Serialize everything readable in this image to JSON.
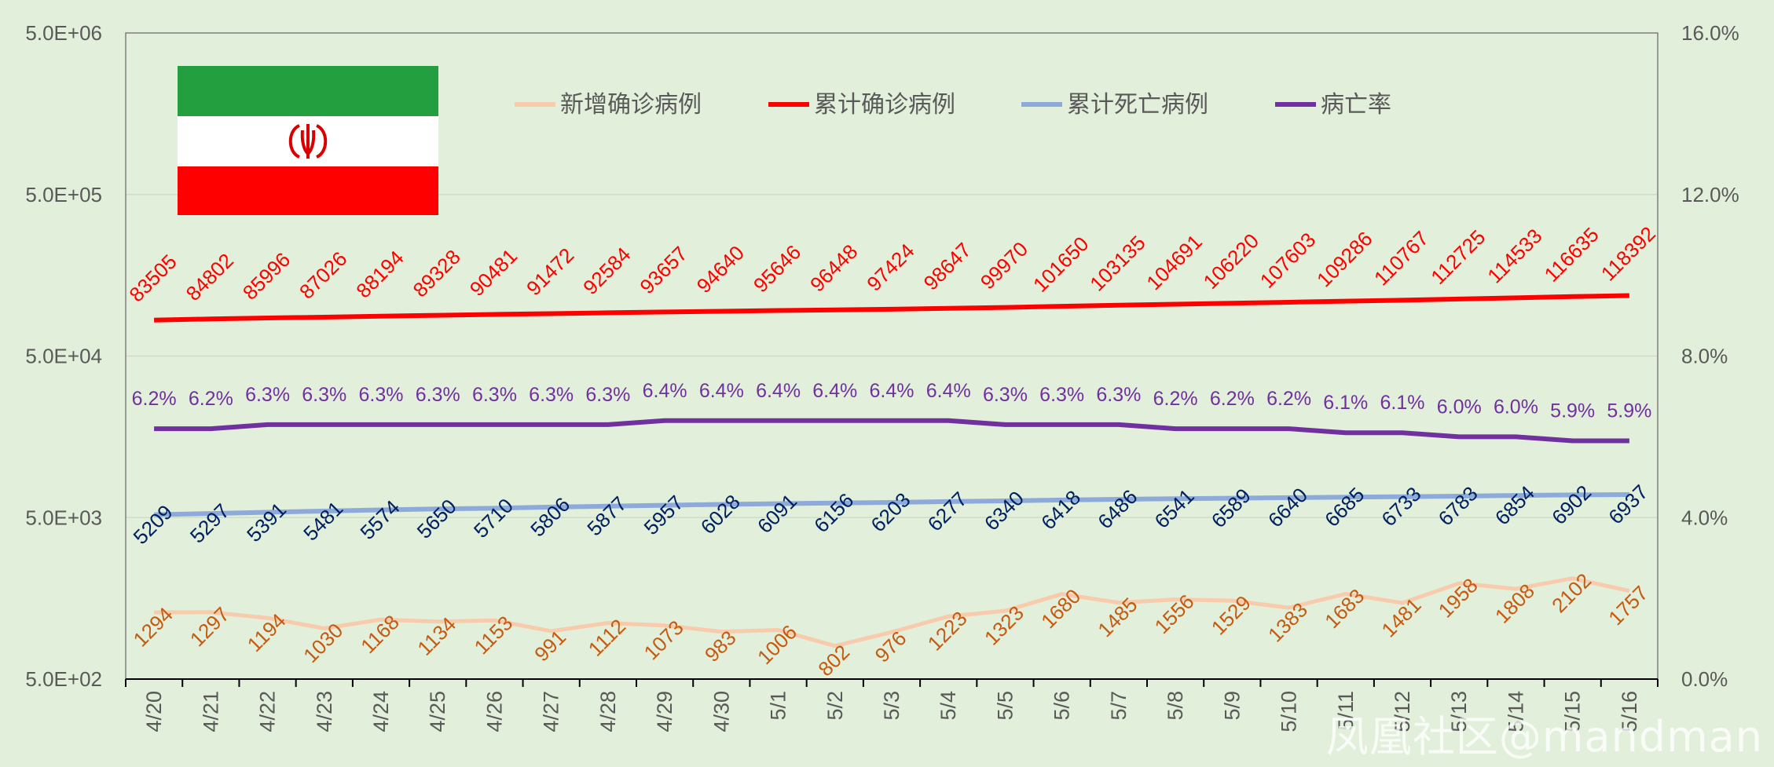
{
  "chart_data": {
    "type": "line",
    "categories": [
      "4/20",
      "4/21",
      "4/22",
      "4/23",
      "4/24",
      "4/25",
      "4/26",
      "4/27",
      "4/28",
      "4/29",
      "4/30",
      "5/1",
      "5/2",
      "5/3",
      "5/4",
      "5/5",
      "5/6",
      "5/7",
      "5/8",
      "5/9",
      "5/10",
      "5/11",
      "5/12",
      "5/13",
      "5/14",
      "5/15",
      "5/16"
    ],
    "y_left": {
      "scale": "log",
      "range": [
        500,
        5000000
      ],
      "ticks": [
        "5.0E+02",
        "5.0E+03",
        "5.0E+04",
        "5.0E+05",
        "5.0E+06"
      ]
    },
    "y_right": {
      "scale": "linear",
      "range": [
        0,
        16
      ],
      "ticks": [
        "0.0%",
        "4.0%",
        "8.0%",
        "12.0%",
        "16.0%"
      ]
    },
    "legend_position": "top",
    "grid": true,
    "series": [
      {
        "name": "新增确诊病例",
        "axis": "left",
        "color": "#f8cbad",
        "label_color": "#c55a11",
        "values": [
          1294,
          1297,
          1194,
          1030,
          1168,
          1134,
          1153,
          991,
          1112,
          1073,
          983,
          1006,
          802,
          976,
          1223,
          1323,
          1680,
          1485,
          1556,
          1529,
          1383,
          1683,
          1481,
          1958,
          1808,
          2102,
          1757
        ]
      },
      {
        "name": "累计确诊病例",
        "axis": "left",
        "color": "#ff0000",
        "label_color": "#ff0000",
        "values": [
          83505,
          84802,
          85996,
          87026,
          88194,
          89328,
          90481,
          91472,
          92584,
          93657,
          94640,
          95646,
          96448,
          97424,
          98647,
          99970,
          101650,
          103135,
          104691,
          106220,
          107603,
          109286,
          110767,
          112725,
          114533,
          116635,
          118392
        ]
      },
      {
        "name": "累计死亡病例",
        "axis": "left",
        "color": "#8eaadb",
        "label_color": "#002060",
        "values": [
          5209,
          5297,
          5391,
          5481,
          5574,
          5650,
          5710,
          5806,
          5877,
          5957,
          6028,
          6091,
          6156,
          6203,
          6277,
          6340,
          6418,
          6486,
          6541,
          6589,
          6640,
          6685,
          6733,
          6783,
          6854,
          6902,
          6937
        ]
      },
      {
        "name": "病亡率",
        "axis": "right",
        "color": "#7030a0",
        "label_color": "#7030a0",
        "values": [
          6.2,
          6.2,
          6.3,
          6.3,
          6.3,
          6.3,
          6.3,
          6.3,
          6.3,
          6.4,
          6.4,
          6.4,
          6.4,
          6.4,
          6.4,
          6.3,
          6.3,
          6.3,
          6.2,
          6.2,
          6.2,
          6.1,
          6.1,
          6.0,
          6.0,
          5.9,
          5.9
        ],
        "labels": [
          "6.2%",
          "6.2%",
          "6.3%",
          "6.3%",
          "6.3%",
          "6.3%",
          "6.3%",
          "6.3%",
          "6.3%",
          "6.4%",
          "6.4%",
          "6.4%",
          "6.4%",
          "6.4%",
          "6.4%",
          "6.3%",
          "6.3%",
          "6.3%",
          "6.2%",
          "6.2%",
          "6.2%",
          "6.1%",
          "6.1%",
          "6.0%",
          "6.0%",
          "5.9%",
          "5.9%"
        ]
      }
    ]
  },
  "watermark": "凤凰社区@mandman",
  "flag_colors": {
    "green": "#239f40",
    "white": "#ffffff",
    "red": "#ff0000"
  }
}
